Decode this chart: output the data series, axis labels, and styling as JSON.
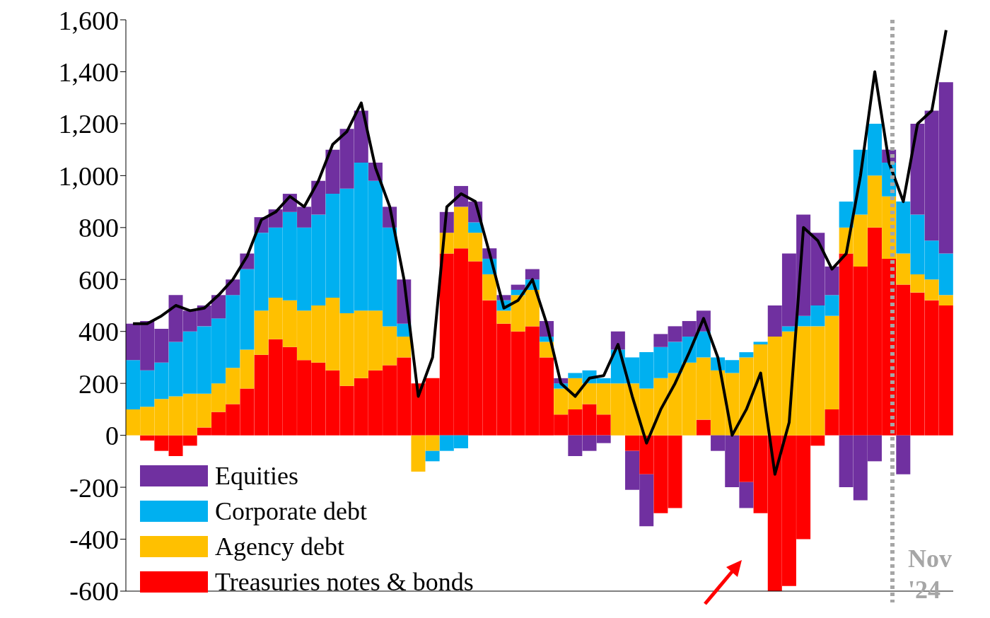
{
  "chart_data": {
    "type": "bar",
    "stacked": true,
    "categories": [
      null,
      null,
      null,
      null,
      null,
      null,
      null,
      null,
      null,
      null,
      null,
      null,
      null,
      null,
      null,
      null,
      null,
      null,
      null,
      null,
      null,
      null,
      null,
      null,
      null,
      null,
      null,
      null,
      null,
      null,
      null,
      null,
      null,
      null,
      null,
      null,
      null,
      null,
      null,
      null,
      null,
      null,
      null,
      null,
      null,
      null,
      null,
      null,
      null,
      null,
      null,
      null,
      null,
      null,
      null,
      null,
      null,
      null
    ],
    "ylim": [
      -600,
      1600
    ],
    "yticks": [
      -600,
      -400,
      -200,
      0,
      200,
      400,
      600,
      800,
      {
        "value": 1000,
        "label": "1,000"
      },
      {
        "value": 1200,
        "label": "1,200"
      },
      {
        "value": 1400,
        "label": "1,400"
      },
      {
        "value": 1600,
        "label": "1,600"
      }
    ],
    "tick_labels": "y",
    "legend": "bottom left",
    "series": [
      {
        "name": "Treasuries notes & bonds",
        "color": "#ff0000",
        "values": [
          0,
          -20,
          -60,
          -80,
          -40,
          30,
          90,
          120,
          180,
          310,
          370,
          340,
          290,
          280,
          250,
          190,
          220,
          250,
          270,
          300,
          200,
          220,
          700,
          720,
          670,
          520,
          430,
          400,
          420,
          300,
          80,
          100,
          120,
          80,
          0,
          -60,
          -150,
          -300,
          -280,
          0,
          60,
          0,
          0,
          -180,
          -300,
          -600,
          -580,
          -400,
          -40,
          100,
          700,
          650,
          800,
          680,
          580,
          550,
          520,
          500
        ]
      },
      {
        "name": "Agency debt",
        "color": "#ffc000",
        "values": [
          100,
          110,
          140,
          150,
          160,
          130,
          110,
          140,
          150,
          170,
          160,
          180,
          190,
          220,
          280,
          280,
          260,
          230,
          150,
          80,
          -140,
          -60,
          80,
          160,
          110,
          100,
          50,
          140,
          140,
          60,
          100,
          120,
          80,
          120,
          200,
          200,
          180,
          220,
          240,
          280,
          240,
          250,
          240,
          300,
          350,
          380,
          400,
          420,
          420,
          360,
          100,
          200,
          200,
          240,
          120,
          70,
          80,
          40
        ]
      },
      {
        "name": "Corporate debt",
        "color": "#00b0f0",
        "values": [
          190,
          140,
          140,
          210,
          240,
          260,
          250,
          280,
          310,
          300,
          270,
          340,
          320,
          350,
          400,
          480,
          570,
          500,
          380,
          50,
          0,
          -40,
          -60,
          -50,
          40,
          60,
          40,
          20,
          40,
          20,
          20,
          20,
          50,
          20,
          130,
          100,
          140,
          120,
          120,
          100,
          100,
          50,
          50,
          20,
          10,
          0,
          20,
          40,
          80,
          80,
          100,
          250,
          200,
          130,
          200,
          230,
          150,
          160
        ]
      },
      {
        "name": "Equities",
        "color": "#7030a0",
        "values": [
          140,
          190,
          130,
          180,
          80,
          80,
          90,
          60,
          60,
          60,
          70,
          70,
          80,
          130,
          170,
          230,
          200,
          70,
          80,
          170,
          0,
          0,
          80,
          80,
          80,
          40,
          20,
          20,
          40,
          60,
          20,
          -80,
          -60,
          -30,
          70,
          -150,
          -200,
          50,
          60,
          60,
          80,
          -60,
          -200,
          -100,
          0,
          120,
          280,
          390,
          280,
          110,
          -200,
          -250,
          -100,
          50,
          -150,
          350,
          500,
          660
        ]
      },
      {
        "type": "line",
        "color": "#000000",
        "values": [
          430,
          430,
          460,
          500,
          480,
          490,
          540,
          600,
          690,
          830,
          860,
          920,
          880,
          980,
          1120,
          1170,
          1280,
          1030,
          880,
          600,
          150,
          300,
          880,
          930,
          900,
          700,
          490,
          520,
          600,
          430,
          200,
          150,
          220,
          230,
          350,
          150,
          -30,
          100,
          200,
          320,
          450,
          300,
          0,
          100,
          240,
          -150,
          50,
          800,
          750,
          640,
          700,
          1000,
          1400,
          1050,
          900,
          1200,
          1250,
          1560
        ]
      }
    ],
    "annotations": [
      "Nov '24"
    ]
  }
}
